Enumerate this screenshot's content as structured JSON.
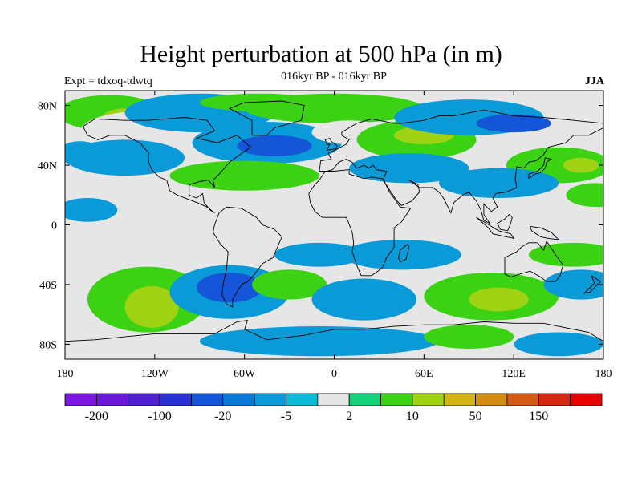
{
  "title": "Height perturbation at 500 hPa (in m)",
  "subtitle": "016kyr BP - 016kyr BP",
  "left_label": "Expt = tdxoq-tdwtq",
  "right_label": "JJA",
  "map": {
    "projection": "cylindrical-equidistant",
    "lon_range": [
      -180,
      180
    ],
    "lat_range": [
      -90,
      90
    ],
    "lat_ticks": [
      {
        "value": 80,
        "label": "80N"
      },
      {
        "value": 40,
        "label": "40N"
      },
      {
        "value": 0,
        "label": "0"
      },
      {
        "value": -40,
        "label": "40S"
      },
      {
        "value": -80,
        "label": "80S"
      }
    ],
    "lon_ticks": [
      {
        "value": -180,
        "label": "180"
      },
      {
        "value": -120,
        "label": "120W"
      },
      {
        "value": -60,
        "label": "60W"
      },
      {
        "value": 0,
        "label": "0"
      },
      {
        "value": 60,
        "label": "60E"
      },
      {
        "value": 120,
        "label": "120E"
      },
      {
        "value": 180,
        "label": "180"
      }
    ],
    "background_color": "#e6e6e6",
    "anomaly_regions": [
      {
        "lon": -150,
        "lat": 75,
        "rlon": 35,
        "rlat": 12,
        "level": 10
      },
      {
        "lon": -140,
        "lat": 72,
        "rlon": 15,
        "rlat": 6,
        "level": 50
      },
      {
        "lon": -130,
        "lat": 62,
        "rlon": 40,
        "rlat": 14,
        "level": 2
      },
      {
        "lon": -90,
        "lat": 75,
        "rlon": 50,
        "rlat": 13,
        "level": -5
      },
      {
        "lon": -50,
        "lat": 82,
        "rlon": 40,
        "rlat": 6,
        "level": 10
      },
      {
        "lon": -45,
        "lat": 55,
        "rlon": 50,
        "rlat": 14,
        "level": -5
      },
      {
        "lon": -40,
        "lat": 53,
        "rlon": 25,
        "rlat": 7,
        "level": -20
      },
      {
        "lon": -60,
        "lat": 33,
        "rlon": 50,
        "rlat": 10,
        "level": 10
      },
      {
        "lon": -140,
        "lat": 45,
        "rlon": 40,
        "rlat": 12,
        "level": -5
      },
      {
        "lon": -170,
        "lat": 48,
        "rlon": 15,
        "rlat": 8,
        "level": -5
      },
      {
        "lon": 0,
        "lat": 78,
        "rlon": 60,
        "rlat": 10,
        "level": 10
      },
      {
        "lon": 10,
        "lat": 62,
        "rlon": 25,
        "rlat": 8,
        "level": 2
      },
      {
        "lon": 55,
        "lat": 57,
        "rlon": 40,
        "rlat": 13,
        "level": 10
      },
      {
        "lon": 60,
        "lat": 60,
        "rlon": 20,
        "rlat": 6,
        "level": 50
      },
      {
        "lon": 90,
        "lat": 72,
        "rlon": 50,
        "rlat": 12,
        "level": -5
      },
      {
        "lon": 120,
        "lat": 68,
        "rlon": 25,
        "rlat": 6,
        "level": -20
      },
      {
        "lon": 50,
        "lat": 38,
        "rlon": 40,
        "rlat": 10,
        "level": -5
      },
      {
        "lon": 150,
        "lat": 40,
        "rlon": 35,
        "rlat": 12,
        "level": 10
      },
      {
        "lon": 165,
        "lat": 40,
        "rlon": 12,
        "rlat": 5,
        "level": 50
      },
      {
        "lon": 110,
        "lat": 28,
        "rlon": 40,
        "rlat": 10,
        "level": -5
      },
      {
        "lon": 175,
        "lat": 20,
        "rlon": 20,
        "rlat": 8,
        "level": 10
      },
      {
        "lon": -165,
        "lat": 10,
        "rlon": 20,
        "rlat": 8,
        "level": -5
      },
      {
        "lon": 45,
        "lat": -20,
        "rlon": 40,
        "rlat": 10,
        "level": -5
      },
      {
        "lon": -10,
        "lat": -20,
        "rlon": 30,
        "rlat": 8,
        "level": -5
      },
      {
        "lon": 160,
        "lat": -20,
        "rlon": 30,
        "rlat": 8,
        "level": 10
      },
      {
        "lon": -125,
        "lat": -50,
        "rlon": 40,
        "rlat": 22,
        "level": 10
      },
      {
        "lon": -122,
        "lat": -55,
        "rlon": 18,
        "rlat": 14,
        "level": 50
      },
      {
        "lon": -70,
        "lat": -45,
        "rlon": 40,
        "rlat": 18,
        "level": -5
      },
      {
        "lon": -70,
        "lat": -42,
        "rlon": 22,
        "rlat": 10,
        "level": -20
      },
      {
        "lon": -30,
        "lat": -40,
        "rlon": 25,
        "rlat": 10,
        "level": 10
      },
      {
        "lon": 20,
        "lat": -50,
        "rlon": 35,
        "rlat": 14,
        "level": -5
      },
      {
        "lon": 105,
        "lat": -48,
        "rlon": 45,
        "rlat": 16,
        "level": 10
      },
      {
        "lon": 110,
        "lat": -50,
        "rlon": 20,
        "rlat": 8,
        "level": 50
      },
      {
        "lon": 165,
        "lat": -40,
        "rlon": 25,
        "rlat": 10,
        "level": -5
      },
      {
        "lon": -10,
        "lat": -78,
        "rlon": 80,
        "rlat": 10,
        "level": -5
      },
      {
        "lon": 90,
        "lat": -75,
        "rlon": 30,
        "rlat": 8,
        "level": 10
      },
      {
        "lon": 150,
        "lat": -80,
        "rlon": 30,
        "rlat": 8,
        "level": -5
      }
    ]
  },
  "colorbar": {
    "colors": [
      "#7b16e1",
      "#6a18d8",
      "#5020d0",
      "#2832d2",
      "#1456d7",
      "#0a78d7",
      "#0a9ad7",
      "#0abad7",
      "#e6e6e6",
      "#14d27a",
      "#3cd214",
      "#a0d214",
      "#d2b414",
      "#d28c14",
      "#d25a14",
      "#d22814",
      "#e60000"
    ],
    "labels": [
      {
        "boundary": 1,
        "text": "-200"
      },
      {
        "boundary": 3,
        "text": "-100"
      },
      {
        "boundary": 5,
        "text": "-20"
      },
      {
        "boundary": 7,
        "text": "-5"
      },
      {
        "boundary": 9,
        "text": "2"
      },
      {
        "boundary": 11,
        "text": "10"
      },
      {
        "boundary": 13,
        "text": "50"
      },
      {
        "boundary": 15,
        "text": "150"
      }
    ]
  },
  "level_colors": {
    "-20": "#1456d7",
    "-5": "#0a9ad7",
    "2": "#e6e6e6",
    "10": "#3cd214",
    "50": "#a0d214"
  }
}
